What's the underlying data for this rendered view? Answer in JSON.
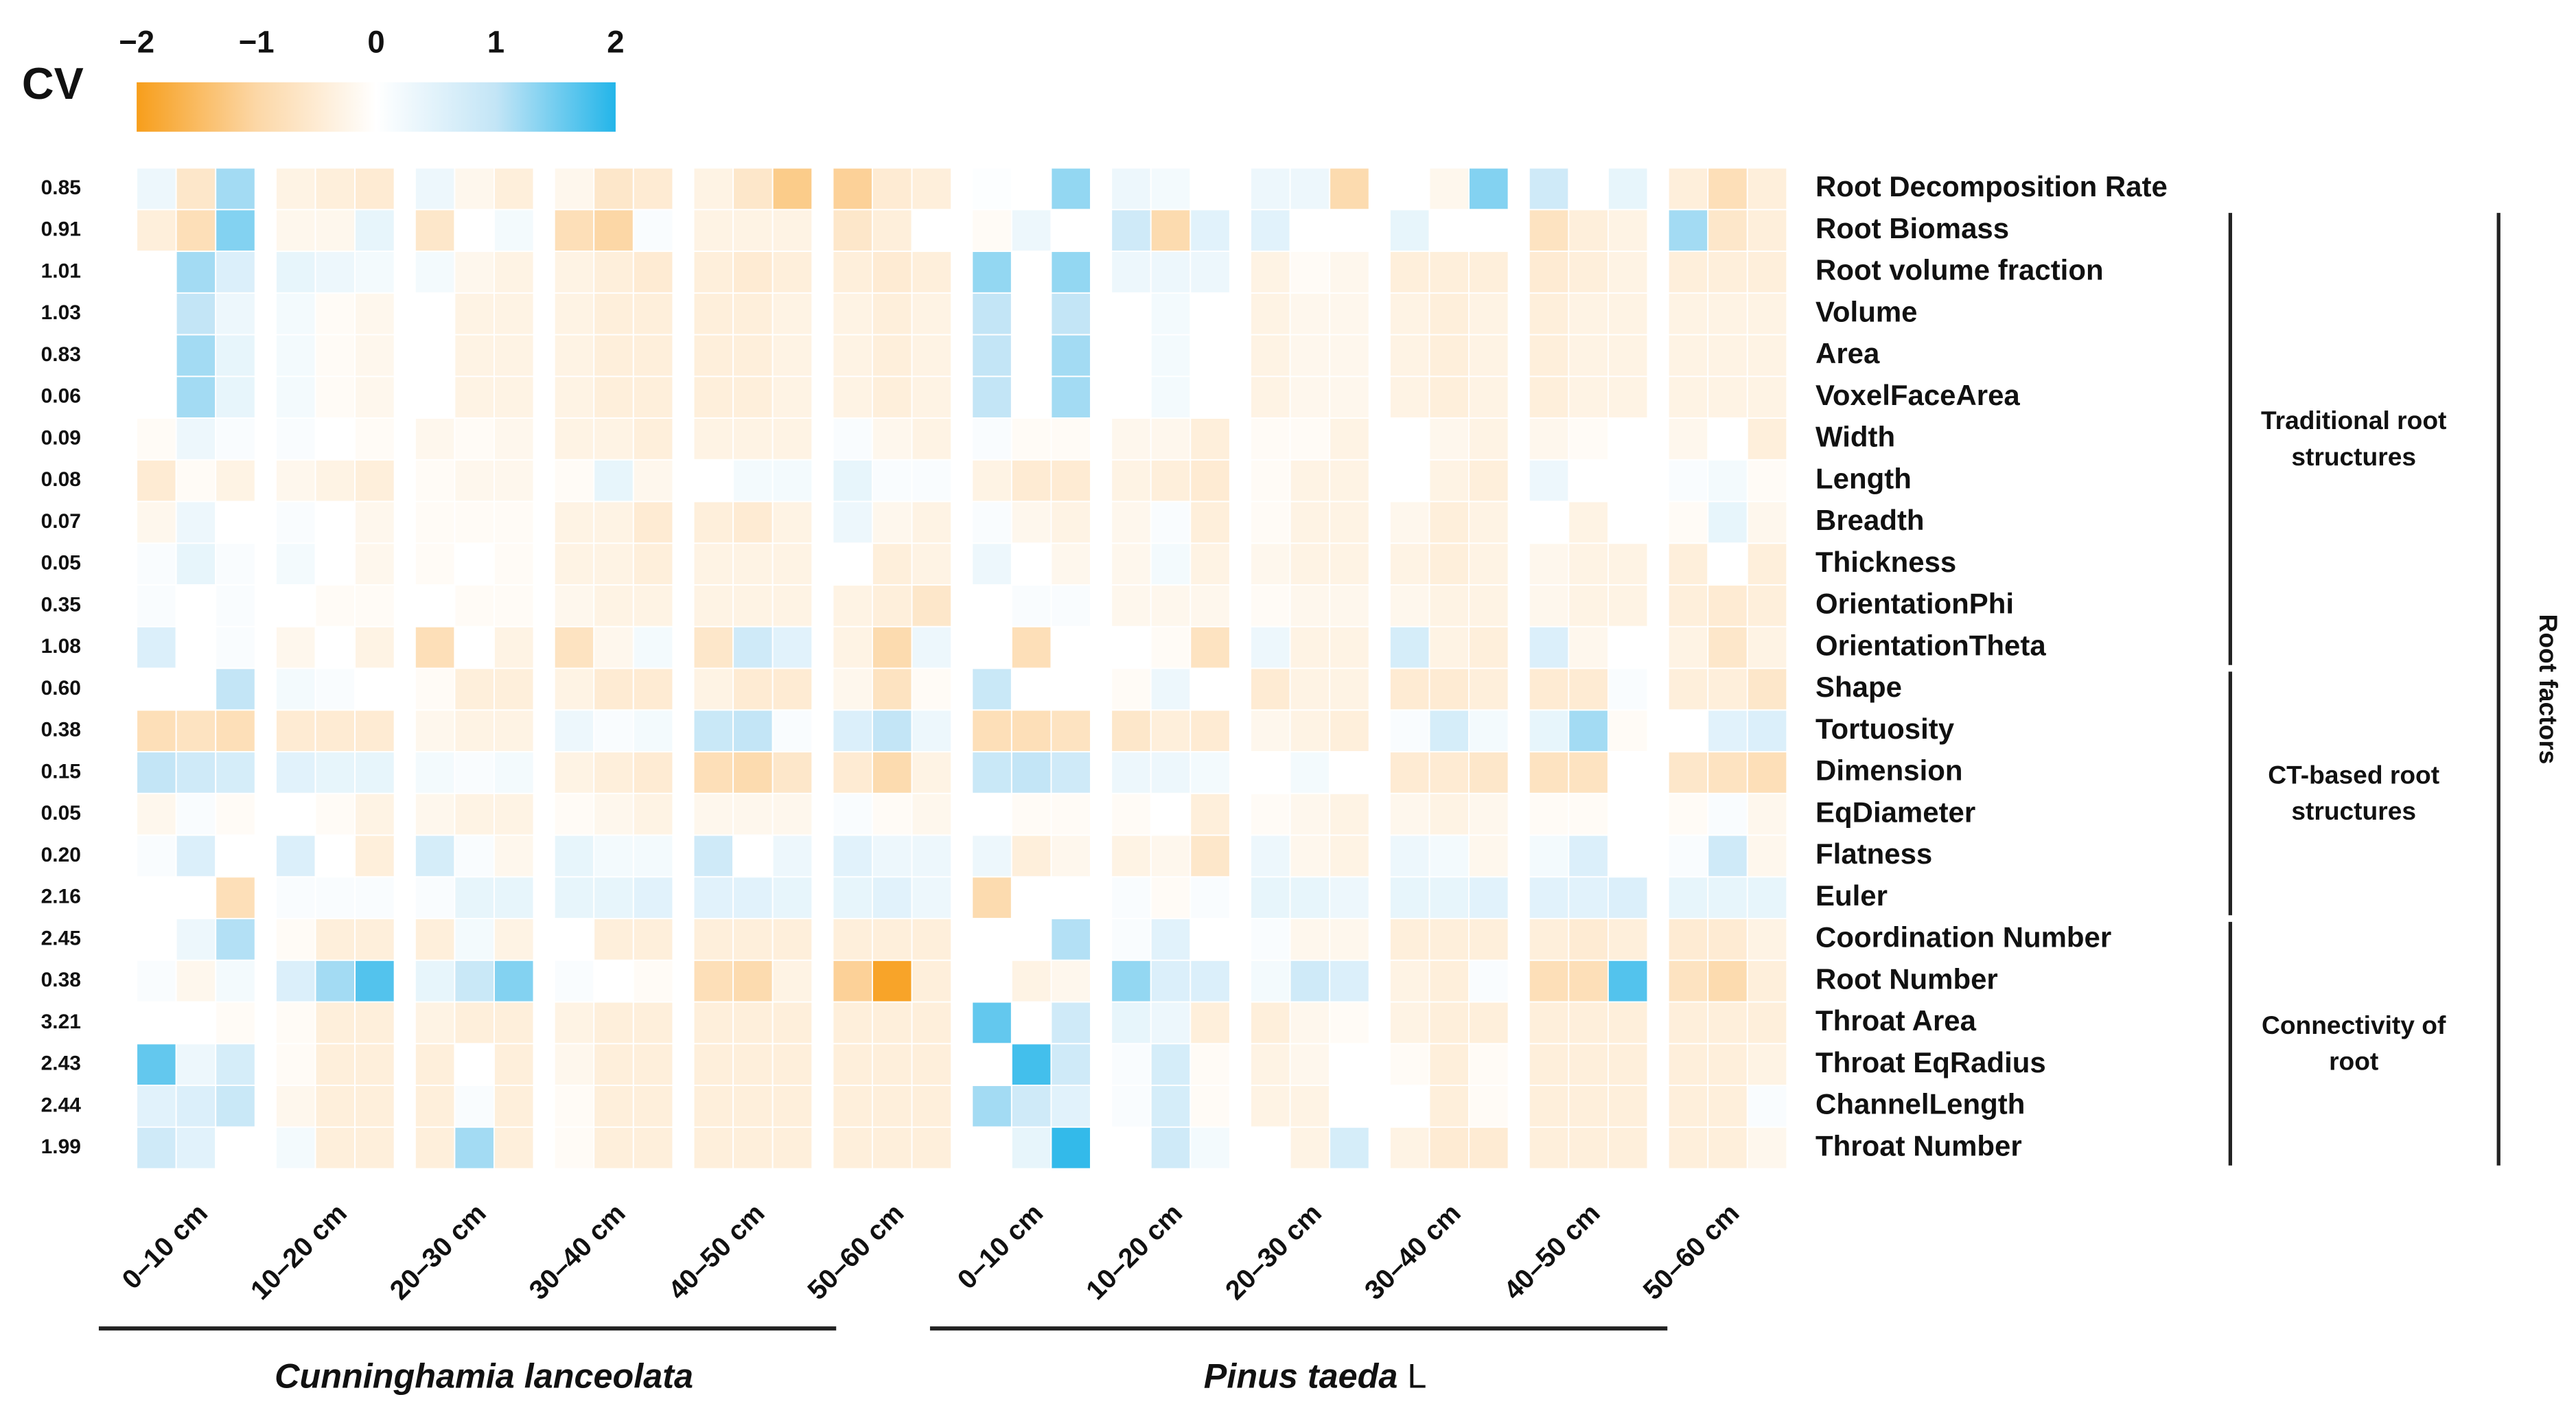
{
  "chart_data": {
    "type": "heatmap",
    "colorbar_title": "CV",
    "zlim": [
      -2,
      2
    ],
    "zticks": [
      {
        "value": -2,
        "label": "−2"
      },
      {
        "value": -1,
        "label": "−1"
      },
      0,
      1,
      2
    ],
    "colors": [
      "#f79e1b",
      "#fcd7a6",
      "#ffffff",
      "#c3e5f6",
      "#23b5e9"
    ],
    "rows": [
      "Root Decomposition Rate",
      "Root Biomass",
      "Root volume fraction",
      "Volume",
      "Area",
      "VoxelFaceArea",
      "Width",
      "Length",
      "Breadth",
      "Thickness",
      "OrientationPhi",
      "OrientationTheta",
      "Shape",
      "Tortuosity",
      "Dimension",
      "EqDiameter",
      "Flatness",
      "Euler",
      "Coordination Number",
      "Root Number",
      "Throat Area",
      "Throat EqRadius",
      "ChannelLength",
      "Throat Number"
    ],
    "cv_values": [
      0.85,
      0.91,
      1.01,
      1.03,
      0.83,
      0.06,
      0.09,
      0.08,
      0.07,
      0.05,
      0.35,
      1.08,
      {
        "value": 0.6,
        "label": "0.60"
      },
      0.38,
      0.15,
      0.05,
      {
        "value": 0.2,
        "label": "0.20"
      },
      2.16,
      2.45,
      0.38,
      3.21,
      2.43,
      2.44,
      1.99
    ],
    "x_groups": [
      "0–10 cm",
      "10–20 cm",
      "20–30 cm",
      "30–40 cm",
      "40–50 cm",
      "50–60 cm",
      "0–10 cm",
      "10–20 cm",
      "20–30 cm",
      "30–40 cm",
      "40–50 cm",
      "50–60 cm"
    ],
    "species": [
      {
        "name": "Cunninghamia lanceolata"
      },
      {
        "name": "Pinus taeda",
        "suffix": "L"
      }
    ],
    "row_groups": [
      [
        "Traditional root",
        "structures"
      ],
      [
        "CT-based root",
        "structures"
      ],
      [
        "Connectivity of",
        "root"
      ]
    ],
    "row_group_title": "Root factors",
    "z": [
      [
        0.3,
        -0.6,
        1.2,
        -0.3,
        -0.4,
        -0.5,
        0.3,
        -0.2,
        -0.4,
        -0.2,
        -0.6,
        -0.5,
        -0.3,
        -0.6,
        -1.2,
        -1.1,
        -0.5,
        -0.4,
        0.05,
        0,
        1.3,
        0.3,
        0.2,
        0,
        0.3,
        0.3,
        -0.9,
        0,
        -0.2,
        1.4,
        0.8,
        0,
        0.4,
        -0.4,
        -0.8,
        -0.4
      ],
      [
        -0.4,
        -0.8,
        1.4,
        -0.2,
        -0.2,
        0.4,
        -0.6,
        0,
        0.2,
        -0.8,
        -1,
        0.1,
        -0.3,
        -0.3,
        -0.3,
        -0.6,
        -0.4,
        0,
        -0.1,
        0.3,
        0,
        0.8,
        -0.9,
        0.5,
        0.5,
        0,
        0,
        0.4,
        0,
        0,
        -0.7,
        -0.4,
        -0.3,
        1.2,
        -0.6,
        -0.4
      ],
      [
        0,
        1.2,
        0.6,
        0.4,
        0.3,
        0.2,
        0.2,
        -0.2,
        -0.3,
        -0.3,
        -0.4,
        -0.5,
        -0.4,
        -0.5,
        -0.4,
        -0.4,
        -0.5,
        -0.4,
        1.3,
        0,
        1.3,
        0.3,
        0.3,
        0.3,
        -0.3,
        -0.1,
        -0.2,
        -0.4,
        -0.4,
        -0.4,
        -0.5,
        -0.4,
        -0.3,
        -0.4,
        -0.4,
        -0.4
      ],
      [
        0,
        1.0,
        0.3,
        0.2,
        -0.1,
        -0.2,
        0,
        -0.3,
        -0.3,
        -0.3,
        -0.4,
        -0.4,
        -0.4,
        -0.4,
        -0.3,
        -0.3,
        -0.4,
        -0.3,
        1.0,
        0,
        1.0,
        0,
        0.2,
        0,
        -0.3,
        -0.2,
        -0.2,
        -0.3,
        -0.4,
        -0.3,
        -0.4,
        -0.3,
        -0.3,
        -0.3,
        -0.3,
        -0.3
      ],
      [
        0,
        1.2,
        0.4,
        0.2,
        -0.1,
        -0.2,
        0,
        -0.3,
        -0.3,
        -0.3,
        -0.4,
        -0.4,
        -0.4,
        -0.4,
        -0.3,
        -0.3,
        -0.4,
        -0.3,
        1.0,
        0,
        1.2,
        0,
        0.2,
        0,
        -0.3,
        -0.2,
        -0.2,
        -0.3,
        -0.4,
        -0.3,
        -0.4,
        -0.3,
        -0.3,
        -0.3,
        -0.3,
        -0.3
      ],
      [
        0,
        1.2,
        0.4,
        0.2,
        -0.1,
        -0.2,
        0,
        -0.3,
        -0.3,
        -0.3,
        -0.4,
        -0.4,
        -0.4,
        -0.4,
        -0.3,
        -0.3,
        -0.4,
        -0.3,
        1.0,
        0,
        1.2,
        0,
        0.2,
        0,
        -0.3,
        -0.2,
        -0.2,
        -0.3,
        -0.4,
        -0.3,
        -0.4,
        -0.3,
        -0.3,
        -0.3,
        -0.3,
        -0.3
      ],
      [
        -0.1,
        0.3,
        0.1,
        0.1,
        0,
        -0.1,
        -0.2,
        -0.1,
        -0.2,
        -0.3,
        -0.3,
        -0.4,
        -0.3,
        -0.3,
        -0.3,
        0.1,
        -0.2,
        -0.3,
        0.1,
        -0.1,
        -0.1,
        -0.2,
        -0.2,
        -0.4,
        -0.1,
        -0.1,
        -0.3,
        0,
        -0.2,
        -0.3,
        -0.2,
        -0.1,
        0,
        -0.2,
        0,
        -0.4
      ],
      [
        -0.5,
        -0.1,
        -0.3,
        -0.2,
        -0.3,
        -0.4,
        -0.1,
        -0.2,
        -0.2,
        -0.1,
        0.4,
        -0.2,
        0,
        0.2,
        0.2,
        0.4,
        0.1,
        0.1,
        -0.3,
        -0.5,
        -0.5,
        -0.3,
        -0.4,
        -0.5,
        -0.1,
        -0.3,
        -0.3,
        0,
        -0.3,
        -0.4,
        0.3,
        0,
        0,
        0.1,
        0.2,
        -0.1
      ],
      [
        -0.2,
        0.3,
        0,
        0.1,
        0,
        -0.2,
        -0.1,
        -0.1,
        -0.1,
        -0.3,
        -0.3,
        -0.5,
        -0.4,
        -0.5,
        -0.3,
        0.3,
        -0.2,
        -0.3,
        0.1,
        -0.2,
        -0.3,
        -0.2,
        0.1,
        -0.4,
        -0.1,
        -0.3,
        -0.3,
        -0.2,
        -0.4,
        -0.3,
        0,
        -0.3,
        0,
        -0.1,
        0.4,
        -0.2
      ],
      [
        0.1,
        0.4,
        0.1,
        0.2,
        0,
        -0.2,
        -0.1,
        0,
        -0.1,
        -0.3,
        -0.3,
        -0.4,
        -0.3,
        -0.3,
        -0.3,
        0,
        -0.4,
        -0.3,
        0.3,
        0,
        -0.2,
        -0.2,
        0.2,
        -0.3,
        -0.2,
        -0.3,
        -0.3,
        -0.3,
        -0.4,
        -0.3,
        -0.2,
        -0.3,
        -0.3,
        -0.4,
        0,
        -0.4
      ],
      [
        0.1,
        0,
        0.1,
        0,
        -0.1,
        -0.1,
        0,
        -0.1,
        -0.1,
        -0.2,
        -0.3,
        -0.3,
        -0.3,
        -0.3,
        -0.3,
        -0.3,
        -0.4,
        -0.6,
        0,
        0.1,
        0.1,
        -0.2,
        -0.2,
        -0.2,
        -0.1,
        -0.2,
        -0.2,
        -0.2,
        -0.3,
        -0.3,
        -0.2,
        -0.3,
        -0.3,
        -0.4,
        -0.5,
        -0.4
      ],
      [
        0.6,
        0,
        0.1,
        -0.2,
        0,
        -0.3,
        -0.8,
        0,
        -0.3,
        -0.7,
        -0.2,
        0.2,
        -0.6,
        0.8,
        0.5,
        -0.3,
        -0.9,
        0.3,
        0,
        -0.8,
        0,
        0,
        -0.1,
        -0.7,
        0.3,
        -0.3,
        -0.3,
        0.7,
        -0.3,
        -0.4,
        0.6,
        -0.2,
        0,
        -0.3,
        -0.6,
        -0.3
      ],
      [
        0,
        0,
        1.0,
        0.2,
        0.1,
        0,
        -0.1,
        -0.4,
        -0.4,
        -0.3,
        -0.5,
        -0.5,
        -0.3,
        -0.5,
        -0.5,
        -0.2,
        -0.7,
        -0.1,
        0.9,
        0,
        0,
        -0.1,
        0.3,
        0,
        -0.5,
        -0.3,
        -0.3,
        -0.5,
        -0.5,
        -0.4,
        -0.5,
        -0.5,
        0.1,
        -0.4,
        -0.4,
        -0.6
      ],
      [
        -0.8,
        -0.7,
        -0.8,
        -0.5,
        -0.5,
        -0.5,
        -0.2,
        -0.3,
        -0.3,
        0.3,
        0.1,
        0.2,
        0.9,
        1.0,
        0.1,
        0.6,
        1.0,
        0.3,
        -0.8,
        -0.8,
        -0.7,
        -0.6,
        -0.4,
        -0.5,
        -0.2,
        -0.3,
        -0.4,
        0.1,
        0.7,
        0.2,
        0.4,
        1.2,
        -0.1,
        0,
        0.5,
        0.6
      ],
      [
        1.0,
        0.8,
        0.7,
        0.5,
        0.4,
        0.4,
        0.2,
        0.1,
        0.2,
        -0.3,
        -0.4,
        -0.5,
        -0.8,
        -0.9,
        -0.6,
        -0.5,
        -0.9,
        -0.3,
        0.9,
        1.0,
        0.8,
        0.3,
        0.3,
        0.2,
        0,
        0.2,
        0,
        -0.5,
        -0.5,
        -0.6,
        -0.7,
        -0.7,
        0,
        -0.6,
        -0.7,
        -0.8
      ],
      [
        -0.2,
        0.1,
        -0.1,
        0,
        -0.1,
        -0.3,
        -0.2,
        -0.3,
        -0.3,
        -0.1,
        -0.2,
        -0.3,
        -0.2,
        -0.2,
        -0.2,
        0.1,
        -0.1,
        -0.2,
        0,
        -0.1,
        -0.1,
        -0.1,
        0,
        -0.4,
        -0.1,
        -0.2,
        -0.3,
        -0.2,
        -0.3,
        -0.2,
        -0.1,
        -0.1,
        0,
        -0.1,
        0.1,
        -0.2
      ],
      [
        0.1,
        0.6,
        0,
        0.6,
        0,
        -0.4,
        0.7,
        0.1,
        -0.2,
        0.4,
        0.2,
        0.2,
        0.8,
        0,
        0.3,
        0.5,
        0.3,
        0.3,
        0.3,
        -0.4,
        -0.2,
        -0.3,
        -0.2,
        -0.6,
        0.3,
        -0.2,
        -0.3,
        0.3,
        0.2,
        -0.2,
        0.2,
        0.6,
        0,
        0.1,
        0.8,
        -0.2
      ],
      [
        0,
        0,
        -0.8,
        0.1,
        0.1,
        0.1,
        0.1,
        0.4,
        0.4,
        0.4,
        0.4,
        0.5,
        0.5,
        0.5,
        0.4,
        0.4,
        0.5,
        0.3,
        -0.9,
        0,
        0,
        0.1,
        -0.1,
        0.1,
        0.4,
        0.4,
        0.3,
        0.4,
        0.4,
        0.5,
        0.5,
        0.5,
        0.6,
        0.4,
        0.4,
        0.4
      ],
      [
        0,
        0.3,
        1.1,
        -0.1,
        -0.4,
        -0.4,
        -0.4,
        0.2,
        -0.3,
        0,
        -0.4,
        -0.4,
        -0.4,
        -0.4,
        -0.4,
        -0.4,
        -0.4,
        -0.4,
        0,
        0,
        1.1,
        0.1,
        0.5,
        0,
        0.1,
        -0.2,
        -0.2,
        -0.4,
        -0.4,
        -0.4,
        -0.4,
        -0.5,
        -0.4,
        -0.5,
        -0.5,
        -0.3
      ],
      [
        0.1,
        -0.2,
        0.2,
        0.6,
        1.2,
        1.7,
        0.4,
        0.9,
        1.4,
        0.1,
        0,
        -0.1,
        -0.8,
        -0.9,
        -0.3,
        -1.1,
        -1.9,
        -0.4,
        0,
        -0.3,
        -0.2,
        1.3,
        0.6,
        0.6,
        0.2,
        0.8,
        0.6,
        -0.3,
        -0.4,
        0.1,
        -0.8,
        -0.8,
        1.7,
        -0.7,
        -0.9,
        -0.4
      ],
      [
        0,
        0,
        -0.1,
        -0.1,
        -0.4,
        -0.4,
        -0.3,
        -0.4,
        -0.4,
        -0.3,
        -0.4,
        -0.4,
        -0.4,
        -0.4,
        -0.4,
        -0.4,
        -0.4,
        -0.4,
        1.6,
        0,
        0.8,
        0.4,
        0.3,
        -0.4,
        -0.4,
        -0.2,
        -0.1,
        -0.3,
        -0.4,
        -0.4,
        -0.4,
        -0.4,
        -0.4,
        -0.4,
        -0.4,
        -0.4
      ],
      [
        1.6,
        0.3,
        0.7,
        -0.1,
        -0.4,
        -0.4,
        -0.4,
        0,
        -0.4,
        -0.2,
        -0.4,
        -0.4,
        -0.4,
        -0.4,
        -0.4,
        -0.4,
        -0.4,
        -0.4,
        0,
        1.8,
        0.8,
        0.1,
        0.7,
        -0.1,
        -0.3,
        -0.2,
        0,
        -0.1,
        -0.4,
        -0.1,
        -0.4,
        -0.4,
        -0.4,
        -0.4,
        -0.4,
        -0.3
      ],
      [
        0.5,
        0.6,
        0.9,
        -0.2,
        -0.4,
        -0.4,
        -0.4,
        0.1,
        -0.4,
        -0.1,
        -0.4,
        -0.4,
        -0.4,
        -0.4,
        -0.4,
        -0.4,
        -0.4,
        -0.4,
        1.2,
        0.8,
        0.5,
        0.1,
        0.7,
        -0.1,
        -0.3,
        -0.3,
        0,
        0,
        -0.4,
        -0.1,
        -0.4,
        -0.4,
        -0.4,
        -0.4,
        -0.4,
        0.1
      ],
      [
        0.8,
        0.5,
        0,
        0.2,
        -0.4,
        -0.4,
        -0.4,
        1.2,
        -0.4,
        -0.1,
        -0.4,
        -0.4,
        -0.4,
        -0.4,
        -0.4,
        -0.4,
        -0.4,
        -0.4,
        0,
        0.4,
        1.9,
        0,
        0.8,
        0.2,
        0,
        -0.3,
        0.7,
        -0.3,
        -0.5,
        -0.5,
        -0.4,
        -0.4,
        -0.4,
        -0.4,
        -0.4,
        -0.2
      ]
    ]
  }
}
